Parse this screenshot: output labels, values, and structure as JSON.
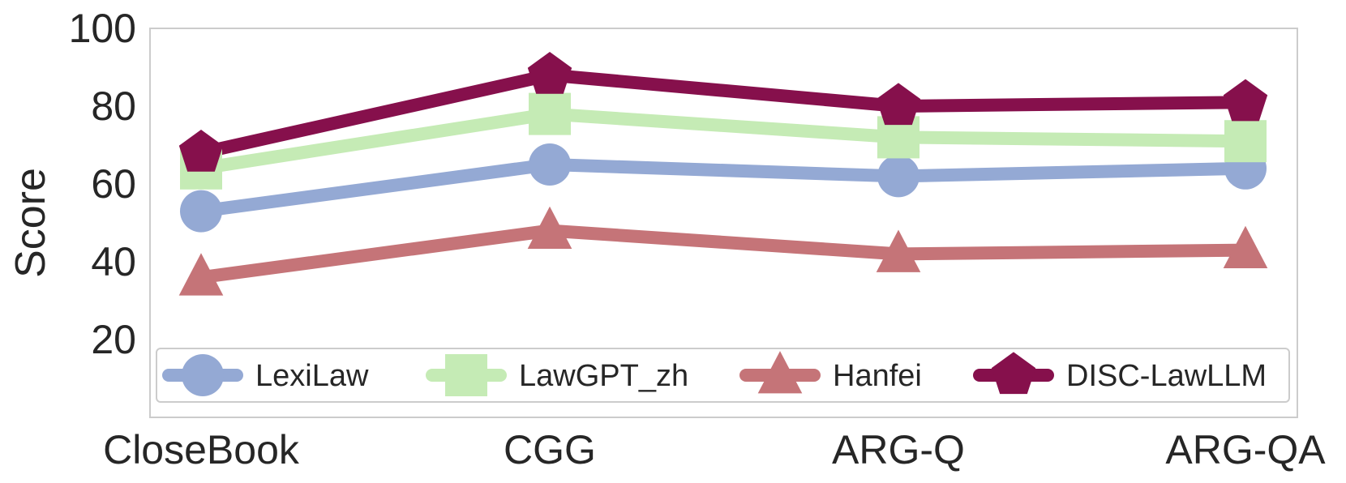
{
  "chart_data": {
    "type": "line",
    "categories": [
      "CloseBook",
      "CGG",
      "ARG-Q",
      "ARG-QA"
    ],
    "ylabel": "Score",
    "xlabel": "",
    "ylim": [
      0,
      100
    ],
    "yticks": [
      20,
      40,
      60,
      80,
      100
    ],
    "grid": false,
    "legend_position": "lower-center (inside)",
    "series": [
      {
        "name": "LexiLaw",
        "values": [
          53,
          65,
          62,
          64
        ],
        "marker": "circle",
        "color": "#94A9D4"
      },
      {
        "name": "LawGPT_zh",
        "values": [
          64,
          78,
          72,
          71
        ],
        "marker": "square",
        "color": "#C5EBB5"
      },
      {
        "name": "Hanfei",
        "values": [
          36,
          48,
          42,
          43
        ],
        "marker": "triangle",
        "color": "#C57478"
      },
      {
        "name": "DISC-LawLLM",
        "values": [
          68,
          88,
          80,
          81
        ],
        "marker": "pentagon",
        "color": "#86104C"
      }
    ]
  }
}
